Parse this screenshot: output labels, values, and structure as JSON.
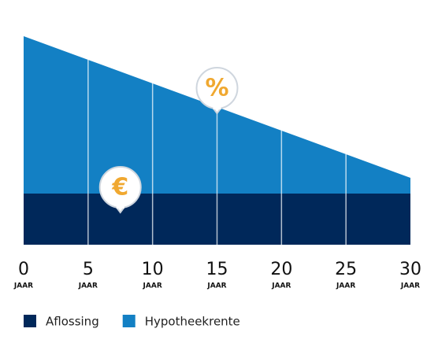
{
  "chart_data": {
    "type": "stacked-area",
    "x": [
      0,
      5,
      10,
      15,
      20,
      25,
      30
    ],
    "xticks": [
      0,
      5,
      10,
      15,
      20,
      25,
      30
    ],
    "x_unit": "JAAR",
    "series": [
      {
        "name": "Aflossing",
        "color": "#00285a",
        "values": [
          65,
          65,
          65,
          65,
          65,
          65,
          65
        ]
      },
      {
        "name": "Hypotheekrente",
        "color": "#1380c4",
        "values": [
          200,
          170,
          140,
          110,
          80,
          50,
          20
        ]
      }
    ],
    "annotations": [
      {
        "text": "€",
        "series": 0,
        "x": 7.5
      },
      {
        "text": "%",
        "series": 1,
        "x": 15
      }
    ],
    "annotation_color": "#f0a830",
    "grid": true
  }
}
